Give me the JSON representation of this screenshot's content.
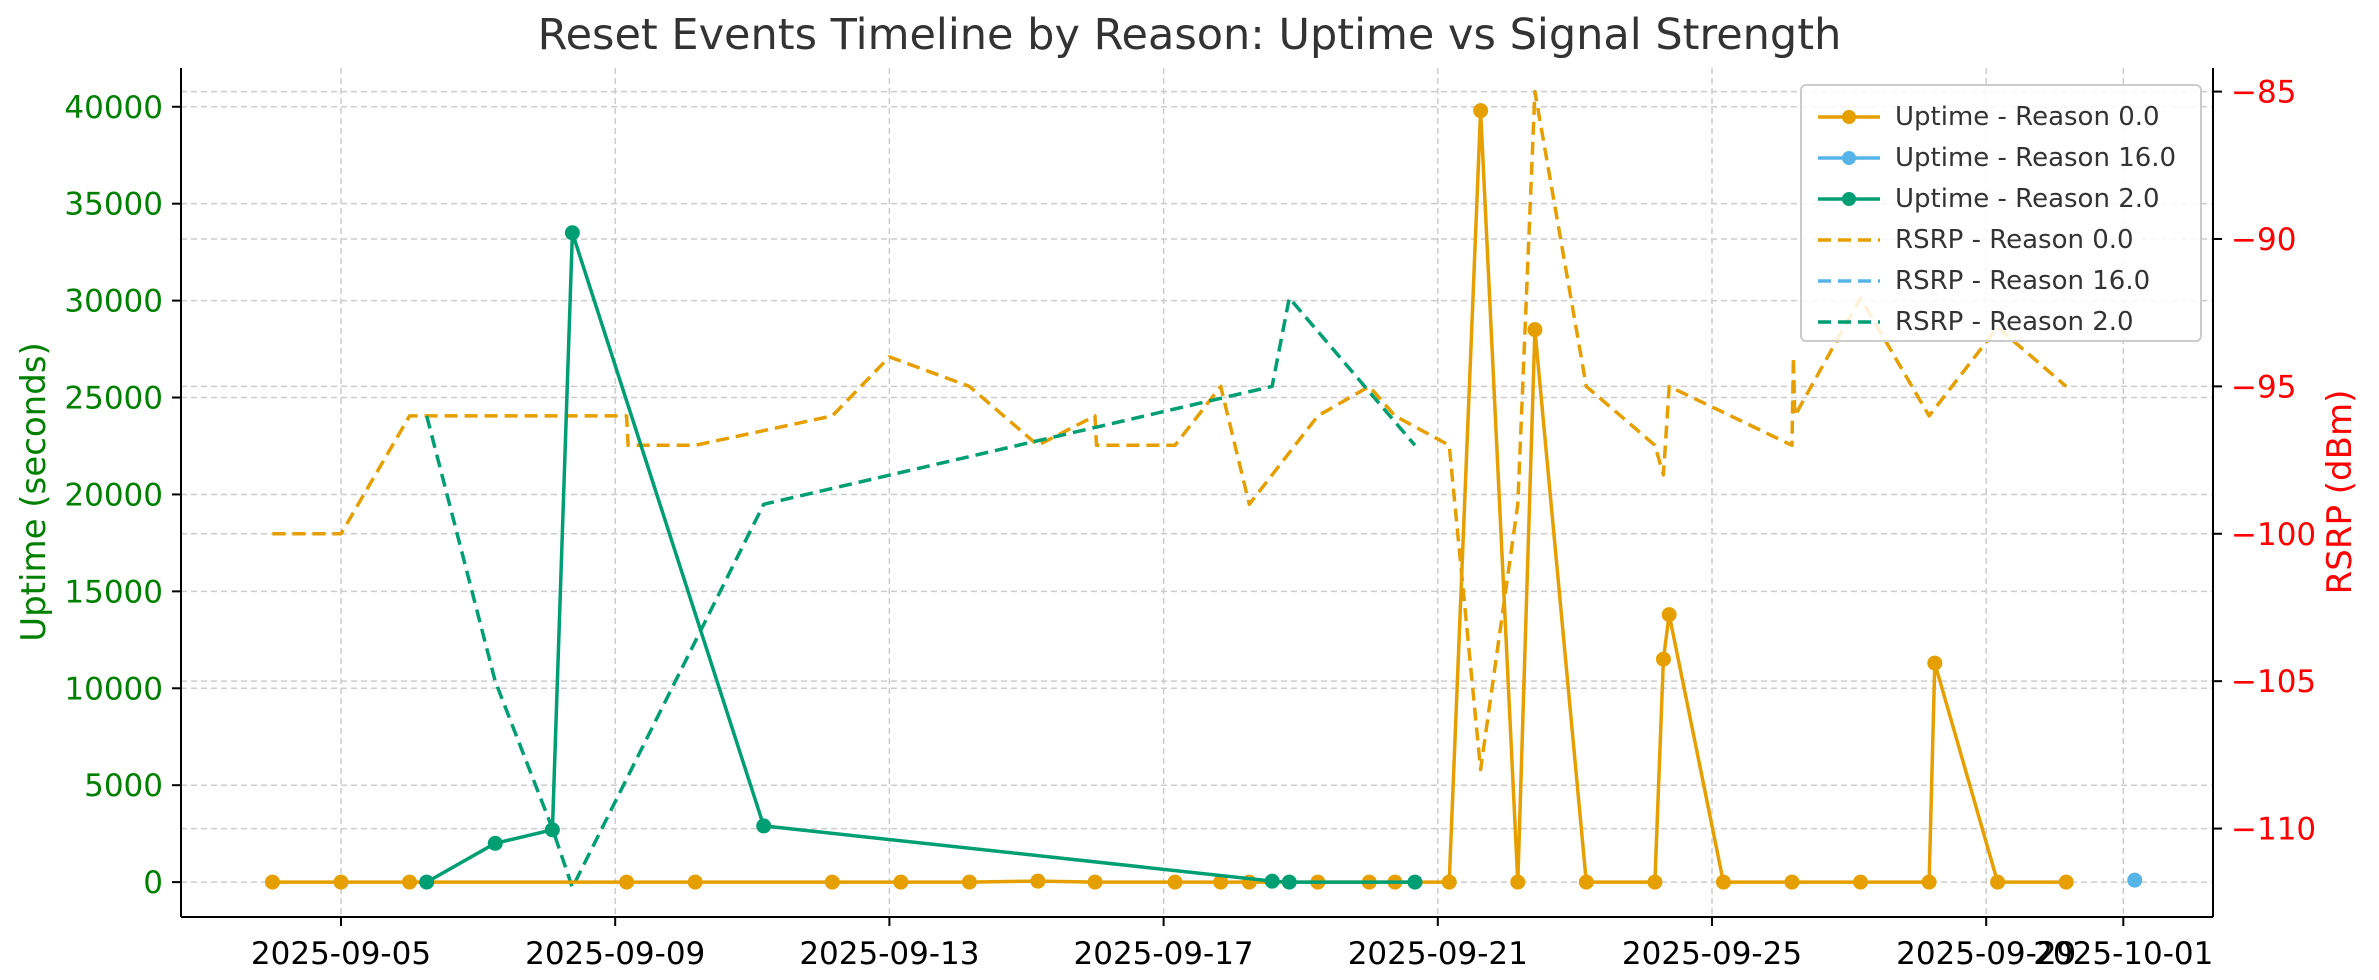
{
  "chart_data": {
    "type": "line",
    "title": "Reset Events Timeline by Reason: Uptime vs Signal Strength",
    "xlabel": "",
    "ylabel_left": "Uptime (seconds)",
    "ylabel_right": "RSRP (dBm)",
    "x_ticks": [
      "2025-09-05",
      "2025-09-09",
      "2025-09-13",
      "2025-09-17",
      "2025-09-21",
      "2025-09-25",
      "2025-09-29",
      "2025-10-01"
    ],
    "ylim_left": [
      -1800,
      42000
    ],
    "ylim_right": [
      -113.0,
      -84.2
    ],
    "y_ticks_left": [
      0,
      5000,
      10000,
      15000,
      20000,
      25000,
      30000,
      35000,
      40000
    ],
    "y_ticks_right": [
      -85,
      -90,
      -95,
      -100,
      -105,
      -110
    ],
    "grid": true,
    "legend_position": "top-right",
    "colors": {
      "reason_0": "#E69F00",
      "reason_16": "#56B4E9",
      "reason_2": "#009E73",
      "left_axis": "#008000",
      "right_axis": "#ff0000"
    },
    "legend": [
      {
        "label": "Uptime - Reason 0.0",
        "style": "solid-marker",
        "color": "#E69F00"
      },
      {
        "label": "Uptime - Reason 16.0",
        "style": "solid-marker",
        "color": "#56B4E9"
      },
      {
        "label": "Uptime - Reason 2.0",
        "style": "solid-marker",
        "color": "#009E73"
      },
      {
        "label": "RSRP - Reason 0.0",
        "style": "dashed",
        "color": "#E69F00"
      },
      {
        "label": "RSRP - Reason 16.0",
        "style": "dashed",
        "color": "#56B4E9"
      },
      {
        "label": "RSRP - Reason 2.0",
        "style": "dashed",
        "color": "#009E73"
      }
    ],
    "series": [
      {
        "name": "Uptime - Reason 0.0",
        "axis": "left",
        "style": "solid-marker",
        "color": "#E69F00",
        "points": [
          [
            "2025-09-04T00:00",
            0
          ],
          [
            "2025-09-05T00:00",
            0
          ],
          [
            "2025-09-06T00:00",
            0
          ],
          [
            "2025-09-09T04:00",
            0
          ],
          [
            "2025-09-10T04:00",
            0
          ],
          [
            "2025-09-12T04:00",
            0
          ],
          [
            "2025-09-13T04:00",
            0
          ],
          [
            "2025-09-14T04:00",
            0
          ],
          [
            "2025-09-15T04:00",
            50
          ],
          [
            "2025-09-16T00:00",
            0
          ],
          [
            "2025-09-17T04:00",
            0
          ],
          [
            "2025-09-17T20:00",
            0
          ],
          [
            "2025-09-18T06:00",
            0
          ],
          [
            "2025-09-19T06:00",
            0
          ],
          [
            "2025-09-20T00:00",
            0
          ],
          [
            "2025-09-20T09:00",
            0
          ],
          [
            "2025-09-21T04:00",
            0
          ],
          [
            "2025-09-21T15:00",
            39800
          ],
          [
            "2025-09-22T04:00",
            0
          ],
          [
            "2025-09-22T10:00",
            28500
          ],
          [
            "2025-09-23T04:00",
            0
          ],
          [
            "2025-09-24T04:00",
            0
          ],
          [
            "2025-09-24T07:00",
            11500
          ],
          [
            "2025-09-24T09:00",
            13800
          ],
          [
            "2025-09-25T04:00",
            0
          ],
          [
            "2025-09-26T04:00",
            0
          ],
          [
            "2025-09-27T04:00",
            0
          ],
          [
            "2025-09-28T04:00",
            0
          ],
          [
            "2025-09-28T06:00",
            11300
          ],
          [
            "2025-09-29T04:00",
            0
          ],
          [
            "2025-09-30T04:00",
            0
          ]
        ]
      },
      {
        "name": "Uptime - Reason 16.0",
        "axis": "left",
        "style": "solid-marker",
        "color": "#56B4E9",
        "points": [
          [
            "2025-10-01T04:00",
            100
          ]
        ]
      },
      {
        "name": "Uptime - Reason 2.0",
        "axis": "left",
        "style": "solid-marker",
        "color": "#009E73",
        "points": [
          [
            "2025-09-06T06:00",
            0
          ],
          [
            "2025-09-07T06:00",
            2000
          ],
          [
            "2025-09-08T02:00",
            2700
          ],
          [
            "2025-09-08T09:00",
            33500
          ],
          [
            "2025-09-11T04:00",
            2900
          ],
          [
            "2025-09-18T14:00",
            50
          ],
          [
            "2025-09-18T20:00",
            0
          ],
          [
            "2025-09-20T16:00",
            0
          ]
        ]
      },
      {
        "name": "RSRP - Reason 0.0",
        "axis": "right",
        "style": "dashed",
        "color": "#E69F00",
        "points": [
          [
            "2025-09-04T00:00",
            -100
          ],
          [
            "2025-09-05T00:00",
            -100
          ],
          [
            "2025-09-06T00:00",
            -96
          ],
          [
            "2025-09-09T04:00",
            -96
          ],
          [
            "2025-09-09T04:30",
            -97
          ],
          [
            "2025-09-10T04:00",
            -97
          ],
          [
            "2025-09-12T04:00",
            -96
          ],
          [
            "2025-09-13T00:00",
            -94
          ],
          [
            "2025-09-14T04:00",
            -95
          ],
          [
            "2025-09-15T04:00",
            -97
          ],
          [
            "2025-09-16T00:00",
            -96
          ],
          [
            "2025-09-16T00:30",
            -97
          ],
          [
            "2025-09-17T04:00",
            -97
          ],
          [
            "2025-09-17T20:00",
            -95
          ],
          [
            "2025-09-18T06:00",
            -99
          ],
          [
            "2025-09-19T06:00",
            -96
          ],
          [
            "2025-09-20T00:00",
            -95
          ],
          [
            "2025-09-20T09:00",
            -96
          ],
          [
            "2025-09-21T04:00",
            -97
          ],
          [
            "2025-09-21T15:00",
            -108
          ],
          [
            "2025-09-22T04:00",
            -99
          ],
          [
            "2025-09-22T10:00",
            -85
          ],
          [
            "2025-09-23T04:00",
            -95
          ],
          [
            "2025-09-24T04:00",
            -97
          ],
          [
            "2025-09-24T07:00",
            -98
          ],
          [
            "2025-09-24T09:00",
            -95
          ],
          [
            "2025-09-26T04:00",
            -97
          ],
          [
            "2025-09-26T04:30",
            -94
          ],
          [
            "2025-09-26T05:00",
            -96
          ],
          [
            "2025-09-27T04:00",
            -92
          ],
          [
            "2025-09-28T04:00",
            -96
          ],
          [
            "2025-09-29T04:00",
            -93
          ],
          [
            "2025-09-30T04:00",
            -95
          ]
        ]
      },
      {
        "name": "RSRP - Reason 16.0",
        "axis": "right",
        "style": "dashed",
        "color": "#56B4E9",
        "points": []
      },
      {
        "name": "RSRP - Reason 2.0",
        "axis": "right",
        "style": "dashed",
        "color": "#009E73",
        "points": [
          [
            "2025-09-06T06:00",
            -96
          ],
          [
            "2025-09-07T06:00",
            -105
          ],
          [
            "2025-09-08T02:00",
            -110
          ],
          [
            "2025-09-08T09:00",
            -112
          ],
          [
            "2025-09-11T04:00",
            -99
          ],
          [
            "2025-09-18T14:00",
            -95
          ],
          [
            "2025-09-18T20:00",
            -92
          ],
          [
            "2025-09-20T16:00",
            -97
          ]
        ]
      }
    ]
  }
}
